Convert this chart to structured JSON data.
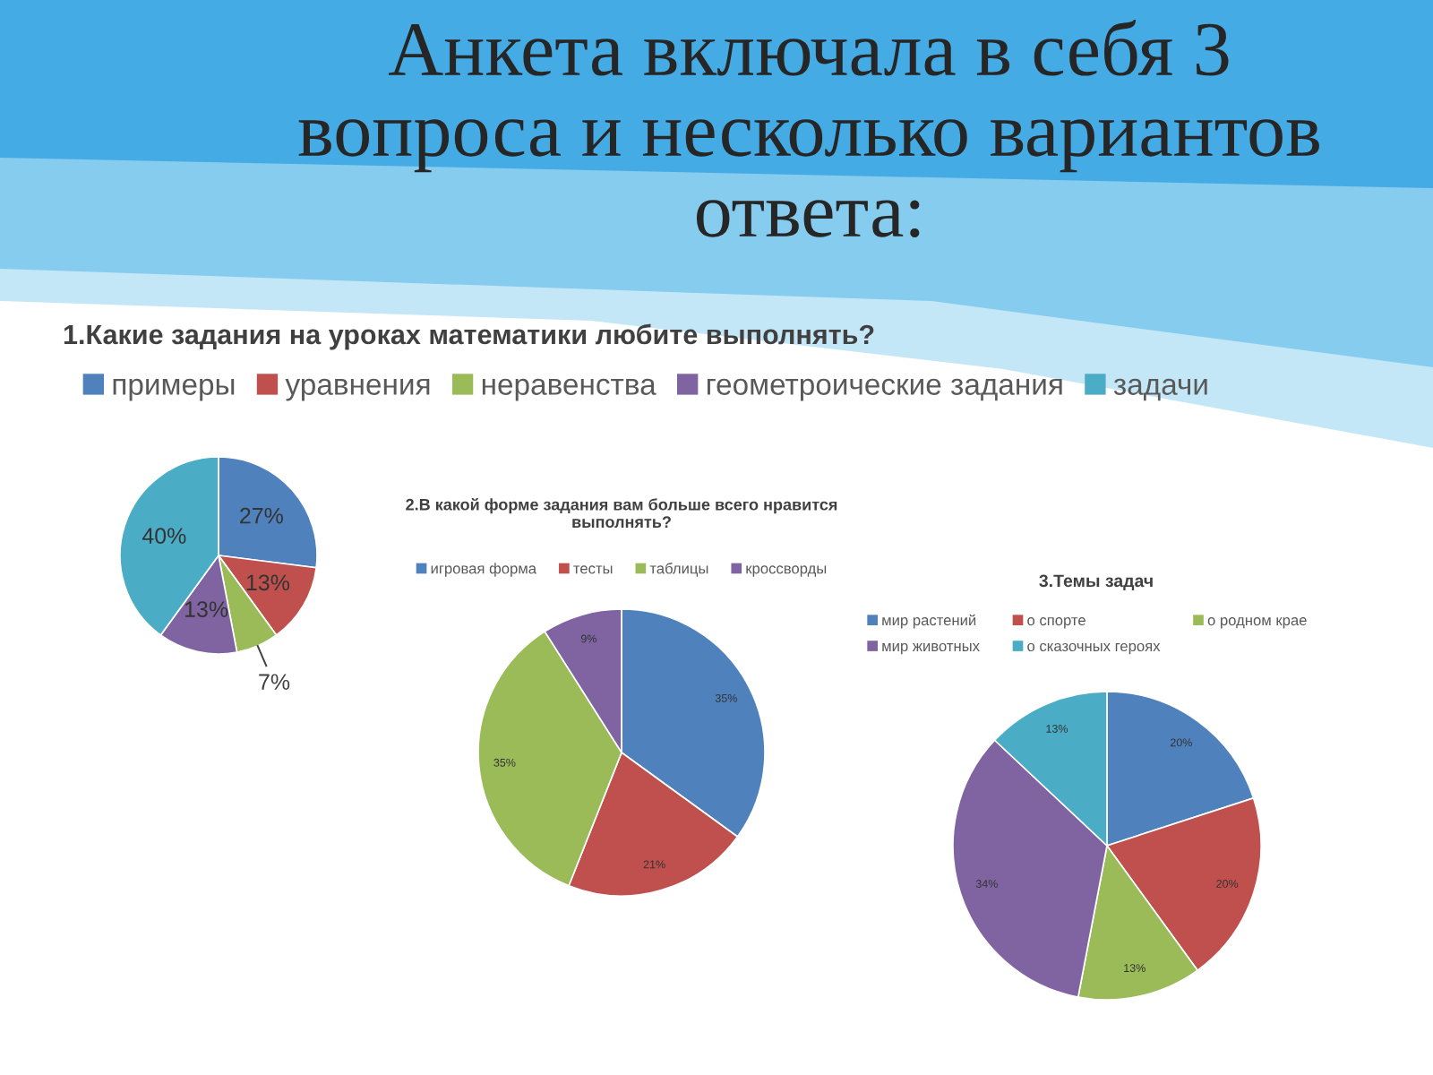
{
  "chart_data": [
    {
      "type": "pie",
      "title": "Анкета включала в себя 3 вопроса и несколько вариантов ответа:",
      "subtitle": "1.Какие задания на уроках математики любите выполнять?",
      "categories": [
        "примеры",
        "уравнения",
        "неравенства",
        "геометроические задания",
        "задачи"
      ],
      "values": [
        27,
        13,
        7,
        13,
        40
      ],
      "colors": [
        "#4f81bd",
        "#c0504d",
        "#9bbb59",
        "#8064a2",
        "#4bacc6"
      ],
      "value_labels": [
        "27%",
        "13%",
        "7%",
        "13%",
        "40%"
      ],
      "legend": "top"
    },
    {
      "type": "pie",
      "title": "2.В какой форме задания вам больше всего нравится выполнять?",
      "categories": [
        "игровая форма",
        "тесты",
        "таблицы",
        "кроссворды"
      ],
      "values": [
        35,
        21,
        35,
        9
      ],
      "colors": [
        "#4f81bd",
        "#c0504d",
        "#9bbb59",
        "#8064a2"
      ],
      "value_labels": [
        "35%",
        "21%",
        "35%",
        "9%"
      ],
      "legend": "top"
    },
    {
      "type": "pie",
      "title": "3.Темы задач",
      "categories": [
        "мир растений",
        "о спорте",
        "о родном крае",
        "мир животных",
        "о сказочных героях"
      ],
      "values": [
        20,
        20,
        13,
        34,
        13
      ],
      "colors": [
        "#4f81bd",
        "#c0504d",
        "#9bbb59",
        "#8064a2",
        "#4bacc6"
      ],
      "value_labels": [
        "20%",
        "20%",
        "13%",
        "34%",
        "13%"
      ],
      "legend": "top"
    }
  ]
}
